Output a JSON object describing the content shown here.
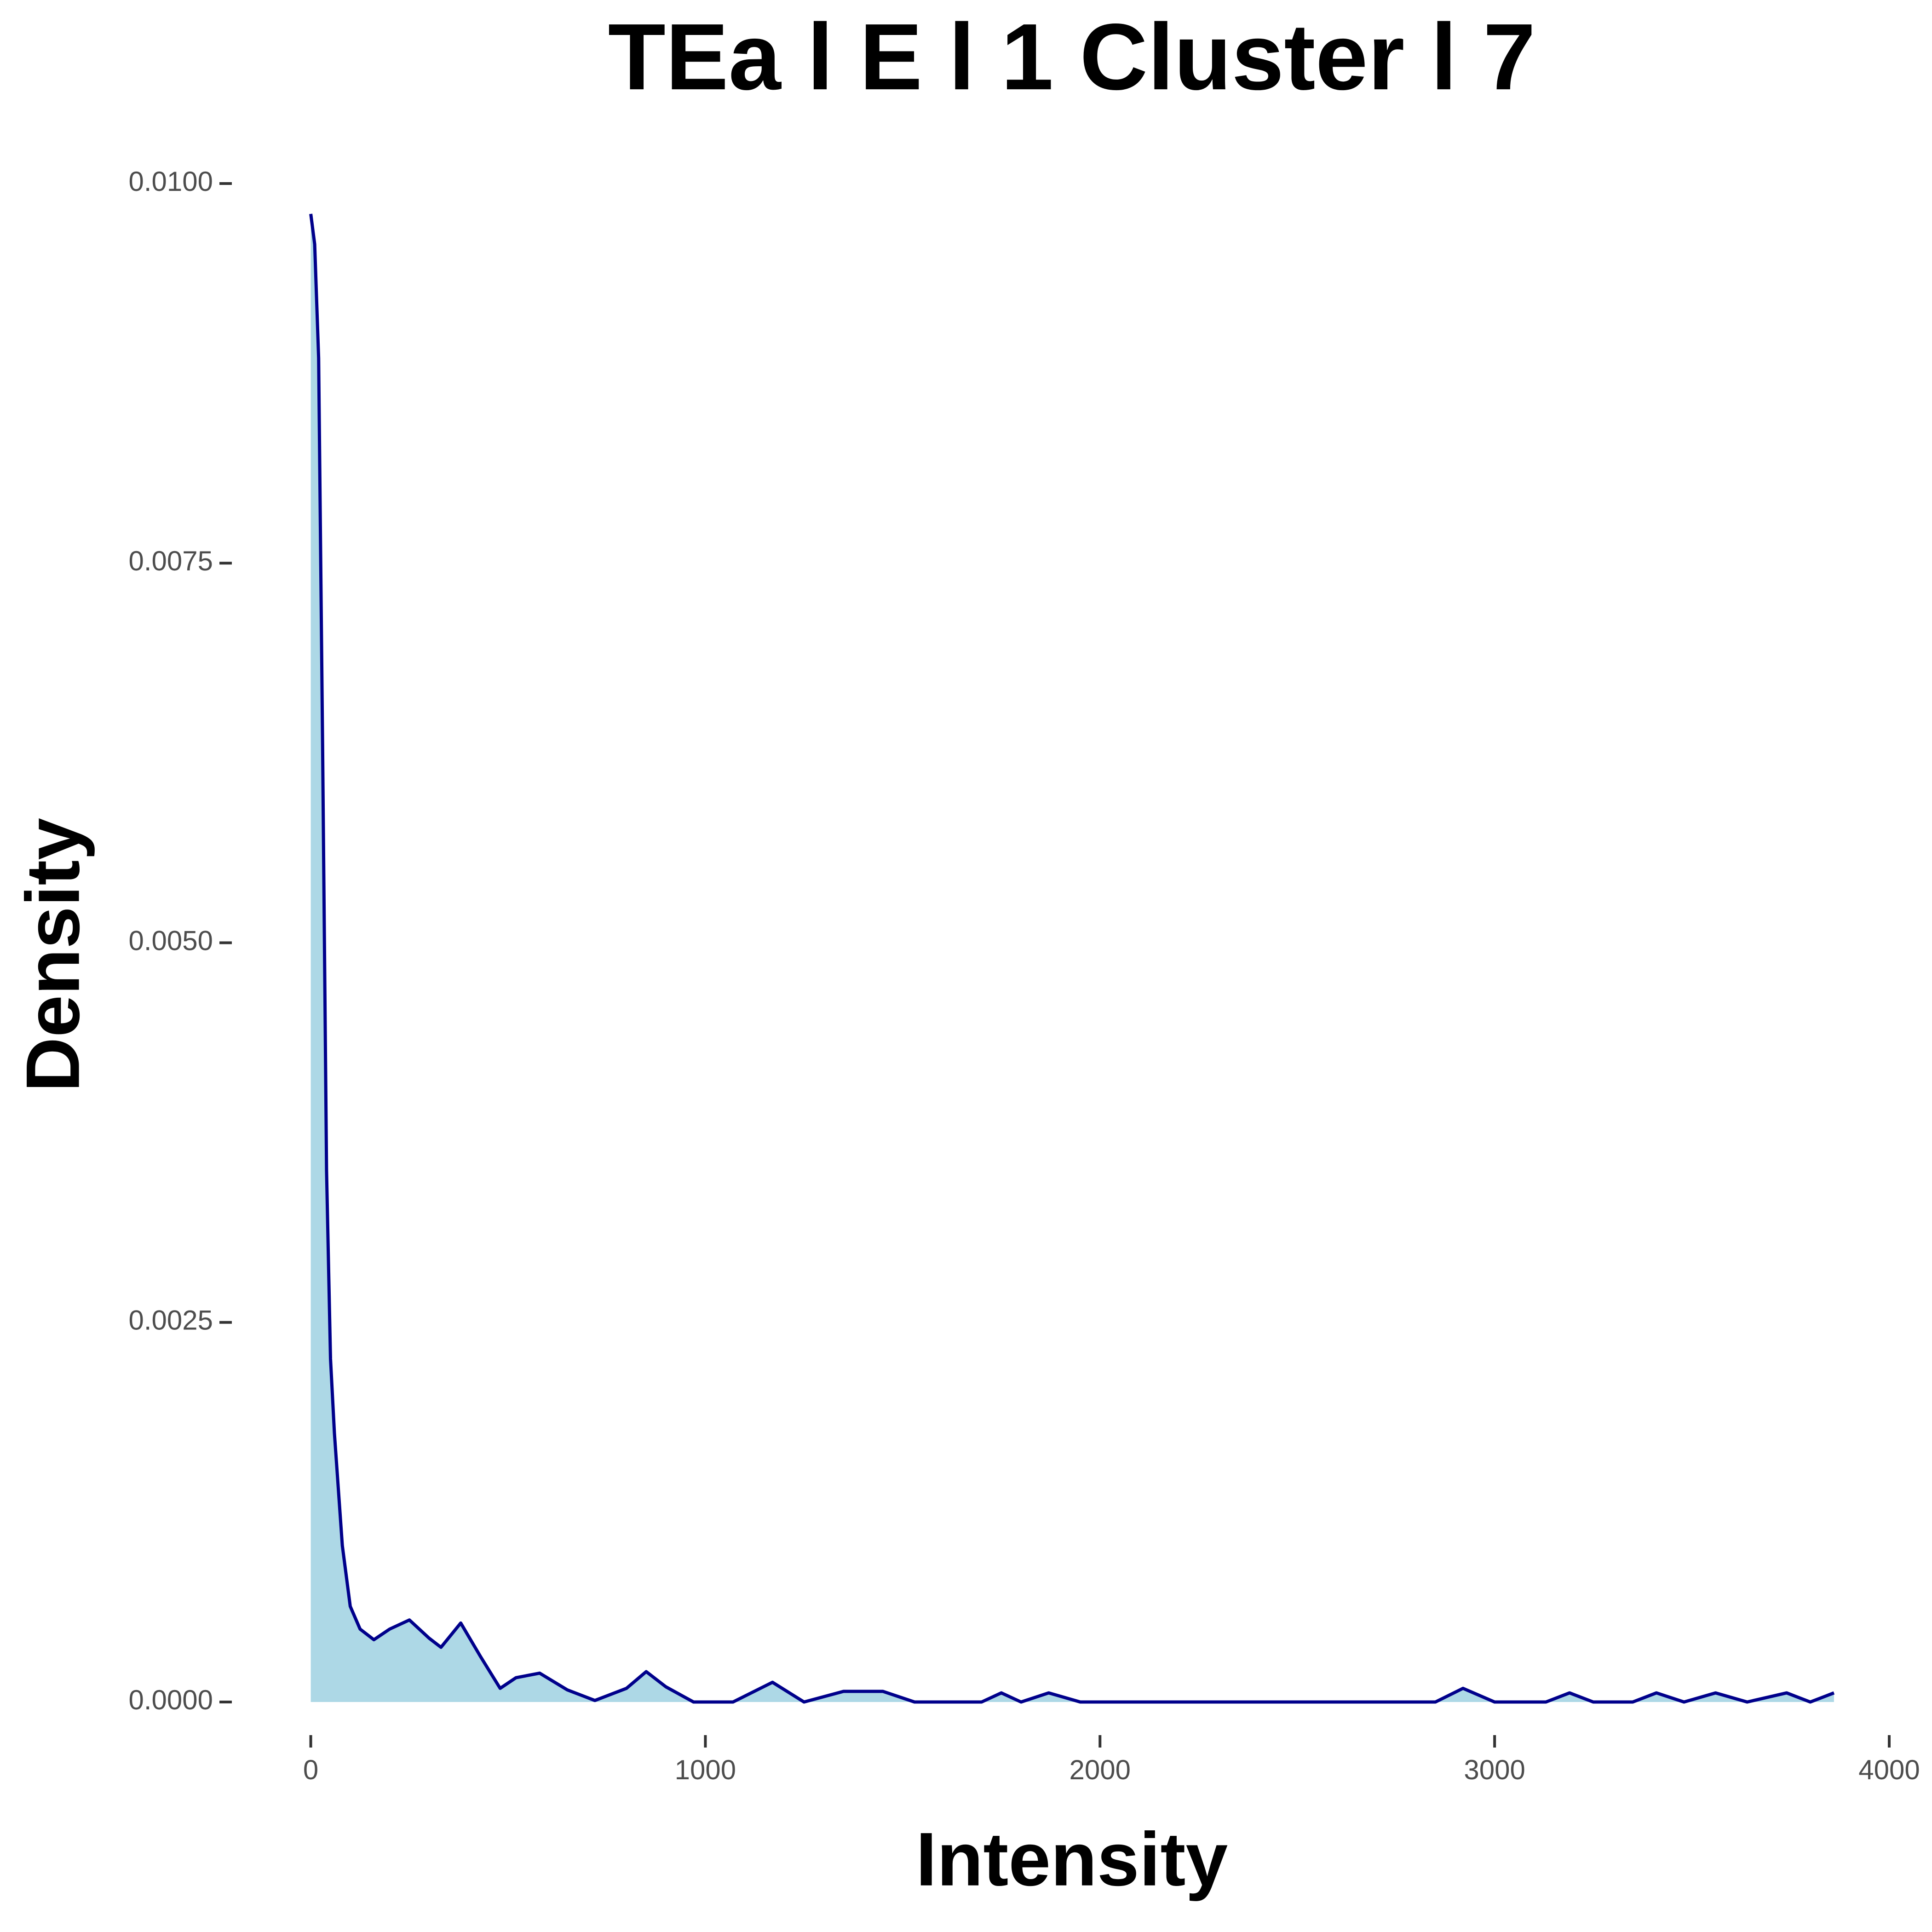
{
  "chart_data": {
    "type": "area",
    "title": "TEa l E l 1 Cluster l  7",
    "x_label": "Intensity",
    "y_label": "Density",
    "xlim": [
      -200,
      4000
    ],
    "ylim": [
      -0.0003,
      0.01
    ],
    "xticks": [
      0,
      1000,
      2000,
      3000,
      4000
    ],
    "yticks": [
      {
        "value": 0,
        "label": "0.0000"
      },
      {
        "value": 0.0025,
        "label": "0.0025"
      },
      {
        "value": 0.005,
        "label": "0.0050"
      },
      {
        "value": 0.0075,
        "label": "0.0075"
      },
      {
        "value": 0.01,
        "label": "0.0100"
      }
    ],
    "fill_color": "#add8e6",
    "line_color": "#00008b",
    "grid": false,
    "x": [
      0,
      10,
      20,
      30,
      40,
      50,
      60,
      80,
      100,
      125,
      160,
      200,
      250,
      300,
      330,
      380,
      430,
      480,
      520,
      580,
      650,
      720,
      800,
      850,
      900,
      970,
      1070,
      1170,
      1250,
      1350,
      1450,
      1530,
      1700,
      1750,
      1800,
      1870,
      1950,
      2850,
      2920,
      3000,
      3130,
      3190,
      3250,
      3350,
      3410,
      3480,
      3560,
      3640,
      3740,
      3800,
      3860
    ],
    "values": [
      0.0098,
      0.0096,
      0.00885,
      0.0063,
      0.0035,
      0.00226,
      0.00177,
      0.00103,
      0.00063,
      0.00048,
      0.00041,
      0.00048,
      0.00054,
      0.00042,
      0.00036,
      0.00052,
      0.0003,
      9e-05,
      0.00016,
      0.00019,
      8e-05,
      1e-05,
      9e-05,
      0.0002,
      0.0001,
      0,
      0,
      0.00013,
      0,
      7e-05,
      7e-05,
      0,
      0,
      6e-05,
      0,
      6e-05,
      0,
      0,
      9e-05,
      0,
      0,
      6e-05,
      0,
      0,
      6e-05,
      0,
      6e-05,
      0,
      6e-05,
      0,
      6e-05
    ]
  }
}
